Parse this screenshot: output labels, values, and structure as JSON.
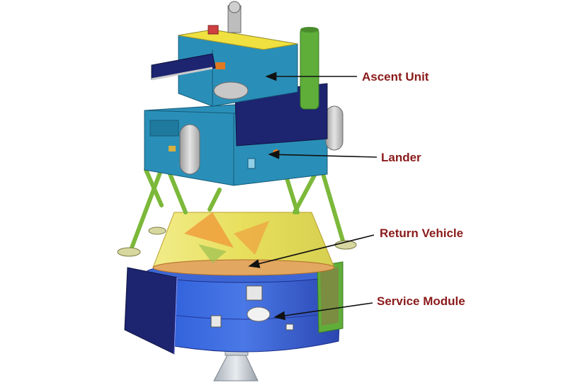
{
  "colors": {
    "label_text": "#8b1a1a",
    "arrow": "#111111",
    "ascent_unit": "#2a8fb8",
    "lander": "#2a8fb8",
    "return_vehicle": "#e8e070",
    "service_module": "#3f5fd0",
    "solar_panel": "#1d2470",
    "fuel_tank": "#c8c8c8",
    "antenna_tube": "#5fae3a"
  },
  "labels": {
    "ascent_unit": "Ascent Unit",
    "lander": "Lander",
    "return_vehicle": "Return Vehicle",
    "service_module": "Service Module"
  }
}
